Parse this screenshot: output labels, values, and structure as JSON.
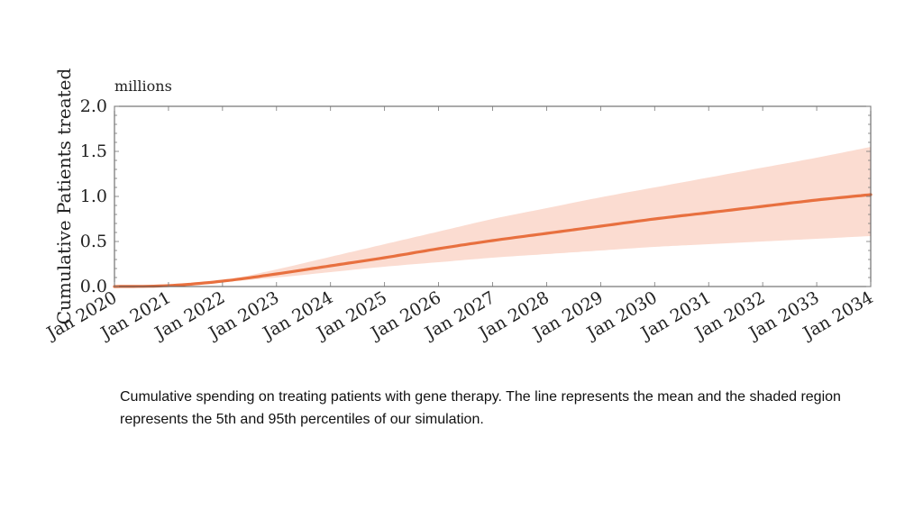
{
  "chart_data": {
    "type": "line",
    "title": "",
    "xlabel": "",
    "ylabel": "Cumulative Patients treated",
    "y_unit_label": "millions",
    "ylim": [
      0,
      2
    ],
    "yticks": [
      "0.0",
      "0.5",
      "1.0",
      "1.5",
      "2.0"
    ],
    "ytick_values": [
      0,
      0.5,
      1.0,
      1.5,
      2.0
    ],
    "xlim": [
      2020,
      2034
    ],
    "categories": [
      "Jan 2020",
      "Jan 2021",
      "Jan 2022",
      "Jan 2023",
      "Jan 2024",
      "Jan 2025",
      "Jan 2026",
      "Jan 2027",
      "Jan 2028",
      "Jan 2029",
      "Jan 2030",
      "Jan 2031",
      "Jan 2032",
      "Jan 2033",
      "Jan 2034"
    ],
    "x": [
      2020,
      2021,
      2022,
      2023,
      2024,
      2025,
      2026,
      2027,
      2028,
      2029,
      2030,
      2031,
      2032,
      2033,
      2034
    ],
    "series": [
      {
        "name": "Mean",
        "type": "line",
        "color": "#e8703f",
        "values": [
          0.0,
          0.01,
          0.06,
          0.14,
          0.23,
          0.32,
          0.42,
          0.51,
          0.59,
          0.67,
          0.75,
          0.82,
          0.89,
          0.96,
          1.02
        ]
      },
      {
        "name": "5th percentile",
        "type": "band-lower",
        "color": "#fbdcd1",
        "values": [
          0.0,
          0.01,
          0.05,
          0.1,
          0.16,
          0.22,
          0.27,
          0.32,
          0.36,
          0.4,
          0.44,
          0.47,
          0.5,
          0.53,
          0.56
        ]
      },
      {
        "name": "95th percentile",
        "type": "band-upper",
        "color": "#fbdcd1",
        "values": [
          0.0,
          0.02,
          0.07,
          0.19,
          0.33,
          0.47,
          0.61,
          0.75,
          0.87,
          0.99,
          1.1,
          1.21,
          1.32,
          1.43,
          1.55
        ]
      }
    ],
    "grid": false
  },
  "caption": "Cumulative spending on treating patients with gene therapy. The line represents the mean and the shaded region represents the 5th and 95th percentiles of our simulation."
}
